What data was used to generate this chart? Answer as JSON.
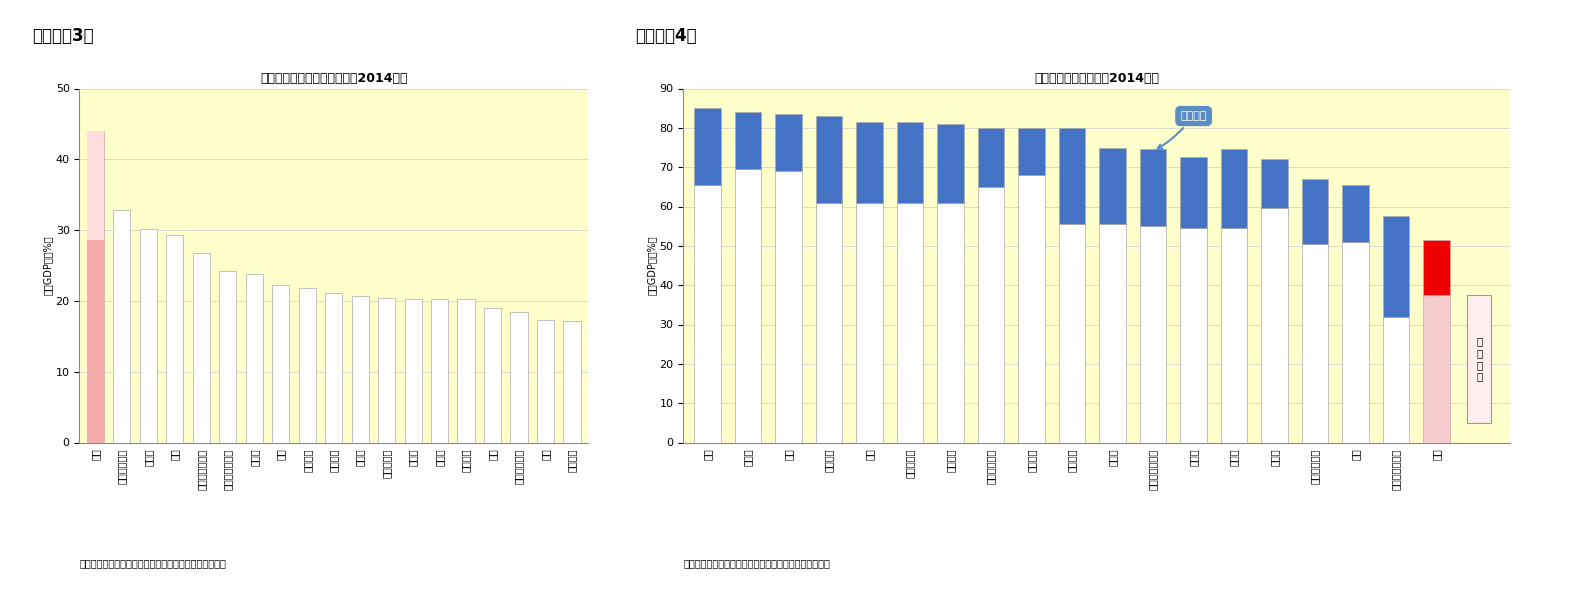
{
  "chart3": {
    "title": "総固定資本形成の国際比較（2014年）",
    "ylabel": "（対GDP比、%）",
    "ylim": [
      0,
      50
    ],
    "yticks": [
      0,
      10,
      20,
      30,
      40,
      50
    ],
    "bg_color": "#FFFFCC",
    "categories": [
      "中国",
      "インドネシア",
      "インド",
      "韓国",
      "オーストラリア",
      "サウジアラビア",
      "カナダ",
      "日本",
      "フランス",
      "メキシコ",
      "ロシア",
      "南アフリカ",
      "トルコ",
      "ドイツ",
      "ブラジル",
      "米国",
      "アルゼンチン",
      "英国",
      "イタリア"
    ],
    "values": [
      44.0,
      32.8,
      30.2,
      29.3,
      26.7,
      24.2,
      23.8,
      22.3,
      21.8,
      21.1,
      20.7,
      20.4,
      20.3,
      20.2,
      20.2,
      19.0,
      18.5,
      17.3,
      17.2
    ],
    "source": "（資料）国連のデータを元にニッセイ基礎研究所で作成"
  },
  "chart4": {
    "title": "最終消費の国際比較（2014年）",
    "ylabel": "（対GDP比、%）",
    "ylim": [
      0,
      90
    ],
    "yticks": [
      0,
      10,
      20,
      30,
      40,
      50,
      60,
      70,
      80,
      90
    ],
    "bg_color": "#FFFFCC",
    "categories": [
      "英国",
      "トルコ",
      "米国",
      "ブラジル",
      "日本",
      "南アフリカ",
      "イタリア",
      "アルゼンチン",
      "メキシコ",
      "フランス",
      "カナダ",
      "オーストラリア",
      "ドイツ",
      "ロシア",
      "インド",
      "インドネシア",
      "韓国",
      "サウジアラビア",
      "中国"
    ],
    "private": [
      65.5,
      69.5,
      69.0,
      61.0,
      61.0,
      61.0,
      61.0,
      65.0,
      68.0,
      55.5,
      55.5,
      55.0,
      54.5,
      54.5,
      59.5,
      50.5,
      51.0,
      32.0,
      37.5
    ],
    "government": [
      19.5,
      14.5,
      14.5,
      22.0,
      20.5,
      20.5,
      20.0,
      15.0,
      12.0,
      24.5,
      19.5,
      19.5,
      18.0,
      20.0,
      12.5,
      16.5,
      14.5,
      25.5,
      14.0
    ],
    "government_color": "#4472C4",
    "source": "（資料）国連のデータを元にニッセイ基礎研究所で作成",
    "annotation_text": "政府支出",
    "legend_label": "個\n人\n消\n費"
  },
  "fig3_label": "（図表－3）",
  "fig4_label": "（図表－4）"
}
